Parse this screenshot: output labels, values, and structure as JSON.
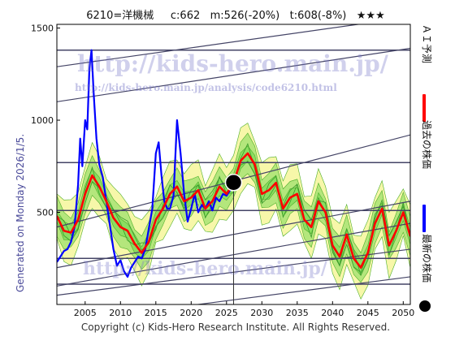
{
  "title": "6210=洋機械     c:662   m:526(-20%)   t:608(-8%)   ★★★",
  "side_label": "Generated on Monday 2026/1/5.",
  "copyright": "Copyright (c) Kids-Hero Research Institute. All Rights Reserved.",
  "watermark": {
    "main": "http://kids-hero.main.jp/",
    "sub": "http://kids-hero.main.jp/analysis/code6210.html"
  },
  "legend": [
    {
      "label": "ＡＩ予測",
      "color": "#ff0000",
      "kind": "line"
    },
    {
      "label": "過去の株価",
      "color": "#0000ff",
      "kind": "line"
    },
    {
      "label": "最新の株価",
      "color": "#000000",
      "kind": "dot"
    }
  ],
  "colors": {
    "background": "#ffffff",
    "band_green": "#7ed957",
    "band_yellow": "#f6f6a0",
    "trend_lines": "#444466"
  },
  "chart_data": {
    "type": "line",
    "xlim": [
      2001,
      2051
    ],
    "ylim": [
      0,
      1520
    ],
    "x_ticks": [
      2005,
      2010,
      2015,
      2020,
      2025,
      2030,
      2035,
      2040,
      2045,
      2050
    ],
    "y_ticks": [
      500,
      1000,
      1500
    ],
    "grid": false,
    "series": [
      {
        "name": "過去の株価",
        "color": "#0000ff",
        "x": [
          2001.0,
          2001.5,
          2002.0,
          2002.5,
          2003.0,
          2003.5,
          2004.0,
          2004.3,
          2004.6,
          2005.0,
          2005.3,
          2005.6,
          2005.9,
          2006.2,
          2006.6,
          2007.0,
          2007.5,
          2008.0,
          2008.5,
          2009.0,
          2009.5,
          2010.0,
          2010.5,
          2011.0,
          2011.5,
          2012.0,
          2012.5,
          2013.0,
          2013.5,
          2014.0,
          2014.5,
          2015.0,
          2015.4,
          2015.8,
          2016.2,
          2016.6,
          2017.0,
          2017.5,
          2018.0,
          2018.5,
          2019.0,
          2019.5,
          2020.0,
          2020.5,
          2021.0,
          2021.5,
          2022.0,
          2022.5,
          2023.0,
          2023.5,
          2024.0,
          2024.5,
          2025.0,
          2025.5,
          2026.0
        ],
        "values": [
          230,
          260,
          290,
          300,
          340,
          420,
          650,
          900,
          750,
          1000,
          950,
          1280,
          1380,
          1150,
          900,
          760,
          690,
          560,
          430,
          300,
          210,
          240,
          180,
          150,
          200,
          230,
          260,
          250,
          300,
          410,
          520,
          820,
          880,
          700,
          560,
          520,
          520,
          590,
          1000,
          820,
          600,
          450,
          520,
          600,
          500,
          540,
          520,
          560,
          510,
          580,
          560,
          600,
          590,
          620,
          662
        ]
      },
      {
        "name": "ＡＩ予測",
        "color": "#ff0000",
        "x": [
          2001,
          2002,
          2003,
          2004,
          2005,
          2006,
          2007,
          2008,
          2009,
          2010,
          2011,
          2012,
          2013,
          2014,
          2015,
          2016,
          2017,
          2018,
          2019,
          2020,
          2021,
          2022,
          2023,
          2024,
          2025,
          2026,
          2027,
          2028,
          2029,
          2030,
          2031,
          2032,
          2033,
          2034,
          2035,
          2036,
          2037,
          2038,
          2039,
          2040,
          2041,
          2042,
          2043,
          2044,
          2045,
          2046,
          2047,
          2048,
          2049,
          2050,
          2051
        ],
        "values": [
          480,
          400,
          390,
          460,
          600,
          700,
          640,
          560,
          470,
          420,
          400,
          330,
          280,
          340,
          460,
          520,
          600,
          640,
          560,
          580,
          620,
          520,
          560,
          640,
          600,
          660,
          780,
          820,
          760,
          600,
          620,
          660,
          520,
          580,
          600,
          460,
          420,
          560,
          500,
          320,
          260,
          380,
          250,
          200,
          280,
          440,
          520,
          320,
          400,
          500,
          370
        ]
      },
      {
        "name": "最新の株価",
        "color": "#000000",
        "x": [
          2026.0
        ],
        "values": [
          662
        ]
      }
    ]
  }
}
